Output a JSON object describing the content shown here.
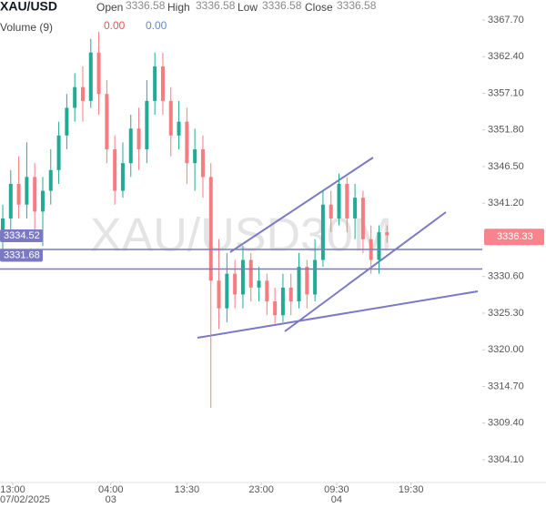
{
  "chart_data": {
    "type": "candlestick",
    "title": "XAU/USD",
    "ohlc_legend": {
      "open_label": "Open",
      "open": 3336.58,
      "high_label": "High",
      "high": 3336.58,
      "low_label": "Low",
      "low": 3336.58,
      "close_label": "Close",
      "close": 3336.58
    },
    "volume_label": "Volume (9)",
    "volume_values": [
      "0.00",
      "0.00"
    ],
    "watermark": "XAU/USD30M",
    "up_color": "#22ab94",
    "down_color": "#f77c80",
    "open": [
      3337,
      3339,
      3344,
      3341,
      3345,
      3340,
      3343,
      3346,
      3351,
      3355,
      3358,
      3356,
      3363,
      3357,
      3349,
      3343,
      3347,
      3352,
      3349,
      3356,
      3361,
      3356,
      3351,
      3353,
      3347,
      3349,
      3345,
      3330,
      3326,
      3331,
      3328,
      3333,
      3329,
      3330,
      3327,
      3325,
      3329,
      3327,
      3332,
      3328,
      3333,
      3341,
      3339,
      3344,
      3339,
      3342,
      3336,
      3333,
      3337
    ],
    "high": [
      3341,
      3346,
      3348,
      3350,
      3347,
      3345,
      3349,
      3353,
      3357,
      3360,
      3361,
      3365,
      3366,
      3359,
      3351,
      3350,
      3354,
      3355,
      3359,
      3363,
      3363,
      3358,
      3356,
      3355,
      3352,
      3351,
      3347,
      3336,
      3334,
      3333,
      3335,
      3334,
      3332,
      3331,
      3329,
      3331,
      3331,
      3334,
      3333,
      3336,
      3343,
      3343,
      3345.5,
      3345,
      3344,
      3343,
      3338,
      3338,
      3338
    ],
    "low": [
      3334,
      3337,
      3339,
      3339,
      3336,
      3335,
      3341,
      3344,
      3349,
      3353,
      3353,
      3355,
      3354,
      3347,
      3341,
      3342,
      3345,
      3346,
      3347,
      3354,
      3354,
      3348,
      3349,
      3344,
      3343,
      3342,
      3311.6,
      3323,
      3324,
      3326,
      3326,
      3327,
      3327,
      3325,
      3323.8,
      3324,
      3325,
      3326,
      3326,
      3327,
      3332,
      3337,
      3338,
      3337,
      3336,
      3334,
      3331,
      3331,
      3335.5
    ],
    "close": [
      3339,
      3344,
      3341,
      3345,
      3340,
      3343,
      3346,
      3351,
      3355,
      3358,
      3356,
      3363,
      3357,
      3349,
      3343,
      3347,
      3352,
      3349,
      3356,
      3361,
      3356,
      3351,
      3353,
      3347,
      3349,
      3345,
      3330,
      3326,
      3331,
      3328,
      3333,
      3329,
      3330,
      3327,
      3325,
      3329,
      3327,
      3332,
      3328,
      3333,
      3341,
      3339,
      3344,
      3339,
      3342,
      3336,
      3333,
      3337,
      3336.58
    ],
    "ylim": [
      3300.8,
      3370.6
    ],
    "yticks": [
      {
        "value": 3367.7,
        "label": "3367.70"
      },
      {
        "value": 3362.4,
        "label": "3362.40"
      },
      {
        "value": 3357.1,
        "label": "3357.10"
      },
      {
        "value": 3351.8,
        "label": "3351.80"
      },
      {
        "value": 3346.5,
        "label": "3346.50"
      },
      {
        "value": 3341.2,
        "label": "3341.20"
      },
      {
        "value": 3330.6,
        "label": "3330.60"
      },
      {
        "value": 3325.3,
        "label": "3325.30"
      },
      {
        "value": 3320,
        "label": "3320.00"
      },
      {
        "value": 3314.7,
        "label": "3314.70"
      },
      {
        "value": 3309.4,
        "label": "3309.40"
      },
      {
        "value": 3304.1,
        "label": "3304.10"
      }
    ],
    "xlim": [
      -0.34,
      59.9
    ],
    "xticks": [
      {
        "value": 1.25,
        "label": "13:00"
      },
      {
        "value": 13.5,
        "label": "04:00"
      },
      {
        "value": 23,
        "label": "13:30"
      },
      {
        "value": 32.3,
        "label": "23:00"
      },
      {
        "value": 41.7,
        "label": "09:30"
      },
      {
        "value": 51,
        "label": "19:30"
      }
    ],
    "xticks_dates": [
      {
        "value": -0.34,
        "label": "07/02/2025"
      },
      {
        "value": 13.5,
        "label": "03"
      },
      {
        "value": 41.7,
        "label": "04"
      }
    ],
    "hlines": [
      {
        "value": 3334.52,
        "label": "3334.52"
      },
      {
        "value": 3331.68,
        "label": "3331.68"
      }
    ],
    "hline_color": "#7b79c4",
    "last_price": {
      "value": 3336.33,
      "label": "3336.33"
    },
    "last_price_color": "#f7848c"
  }
}
